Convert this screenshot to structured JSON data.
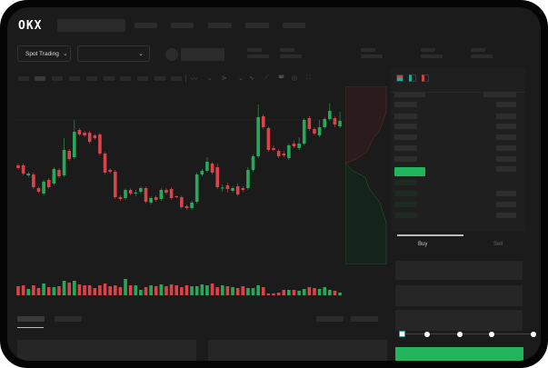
{
  "header": {
    "logo": "OKX"
  },
  "trade_bar": {
    "market_selector": "Spot Trading",
    "chevron": "⌄"
  },
  "order_form": {
    "tabs": [
      {
        "label": "Buy",
        "active": true
      },
      {
        "label": "Sell",
        "active": false
      }
    ],
    "slider_stops": 5,
    "slider_value": 0,
    "submit_color": "#22b55b"
  },
  "colors": {
    "up": "#27a85a",
    "down": "#d9444a",
    "accent": "#22b55b",
    "background": "#1b1b1b"
  },
  "chart_data": {
    "type": "candlestick",
    "candles": [
      [
        118,
        120,
        113,
        115
      ],
      [
        118,
        120,
        107,
        109
      ],
      [
        107,
        111,
        105,
        109
      ],
      [
        108,
        110,
        92,
        94
      ],
      [
        93,
        95,
        87,
        89
      ],
      [
        87,
        102,
        85,
        100
      ],
      [
        102,
        104,
        92,
        94
      ],
      [
        98,
        116,
        96,
        114
      ],
      [
        113,
        115,
        104,
        106
      ],
      [
        107,
        148,
        105,
        135
      ],
      [
        134,
        136,
        123,
        125
      ],
      [
        127,
        168,
        125,
        155
      ],
      [
        157,
        159,
        150,
        152
      ],
      [
        154,
        156,
        149,
        151
      ],
      [
        154,
        156,
        142,
        144
      ],
      [
        151,
        153,
        146,
        148
      ],
      [
        152,
        154,
        129,
        131
      ],
      [
        131,
        133,
        108,
        110
      ],
      [
        113,
        115,
        109,
        111
      ],
      [
        111,
        113,
        81,
        83
      ],
      [
        83,
        85,
        79,
        81
      ],
      [
        82,
        93,
        80,
        91
      ],
      [
        91,
        93,
        85,
        87
      ],
      [
        87,
        91,
        84,
        88
      ],
      [
        89,
        95,
        87,
        93
      ],
      [
        93,
        95,
        76,
        78
      ],
      [
        77,
        84,
        75,
        82
      ],
      [
        83,
        85,
        78,
        80
      ],
      [
        81,
        93,
        79,
        91
      ],
      [
        91,
        93,
        86,
        88
      ],
      [
        92,
        94,
        80,
        82
      ],
      [
        84,
        85,
        82,
        83
      ],
      [
        83,
        85,
        70,
        72
      ],
      [
        73,
        75,
        69,
        71
      ],
      [
        71,
        79,
        69,
        77
      ],
      [
        78,
        110,
        76,
        108
      ],
      [
        108,
        114,
        106,
        112
      ],
      [
        112,
        127,
        110,
        122
      ],
      [
        120,
        122,
        108,
        110
      ],
      [
        116,
        120,
        92,
        94
      ],
      [
        93,
        97,
        89,
        93.5
      ],
      [
        96,
        99,
        88,
        92
      ],
      [
        90,
        95,
        88,
        93
      ],
      [
        95,
        98,
        84,
        86
      ],
      [
        93,
        95,
        89,
        91
      ],
      [
        93,
        116,
        91,
        113
      ],
      [
        113,
        130,
        111,
        128
      ],
      [
        128,
        185,
        126,
        171
      ],
      [
        172,
        174,
        158,
        160
      ],
      [
        159,
        161,
        133,
        135
      ],
      [
        137,
        140,
        133,
        135
      ],
      [
        134,
        136,
        126,
        128
      ],
      [
        131,
        134,
        127,
        129
      ],
      [
        126,
        142,
        124,
        140
      ],
      [
        142,
        145,
        137,
        139
      ],
      [
        137,
        149,
        135,
        142
      ],
      [
        142,
        170,
        140,
        168
      ],
      [
        170,
        172,
        156,
        158
      ],
      [
        158,
        160,
        151,
        153
      ],
      [
        151,
        168,
        149,
        160
      ],
      [
        160,
        171,
        158,
        169
      ],
      [
        169,
        186,
        167,
        178
      ],
      [
        170,
        172,
        160,
        163
      ],
      [
        161,
        177,
        159,
        167
      ]
    ],
    "volume": [
      10,
      11,
      7,
      11,
      8,
      13,
      9,
      9,
      10,
      16,
      14,
      16,
      12,
      11,
      11,
      8,
      11,
      13,
      10,
      11,
      9,
      18,
      11,
      11,
      6,
      9,
      11,
      10,
      12,
      10,
      12,
      11,
      9,
      11,
      10,
      10,
      12,
      11,
      13,
      9,
      11,
      10,
      9,
      8,
      10,
      8,
      8,
      11,
      9,
      2,
      2,
      3,
      6,
      6,
      6,
      5,
      7,
      9,
      8,
      7,
      9,
      6,
      5,
      3
    ],
    "grid": false,
    "axis_labels": false
  }
}
